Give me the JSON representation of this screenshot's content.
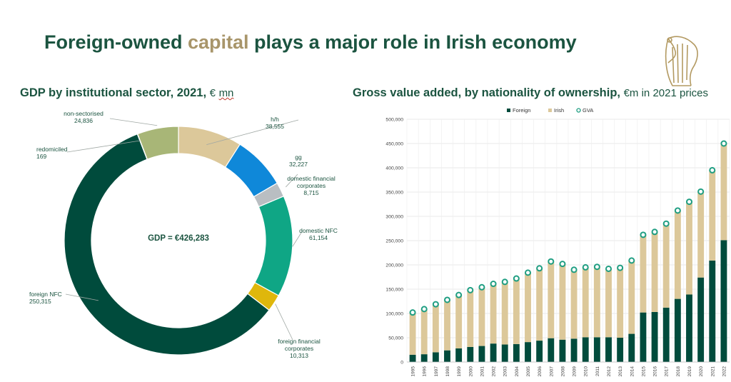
{
  "title": {
    "part1": "Foreign-owned ",
    "accent": "capital",
    "part2": " plays a major role in Irish economy"
  },
  "colors": {
    "title": "#1b5440",
    "accent": "#a8956a",
    "label": "#1b5440"
  },
  "chart_data": [
    {
      "type": "pie",
      "subtype": "donut",
      "title": "GDP by institutional sector, 2021,",
      "unit": "€",
      "unit_suffix": "mn",
      "center_label": "GDP = €426,283",
      "slices": [
        {
          "label": "h/h",
          "value": 38555,
          "display": "38,555",
          "color": "#dcc89a"
        },
        {
          "label": "gg",
          "value": 32227,
          "display": "32,227",
          "color": "#0f88d9"
        },
        {
          "label": "domestic financial corporates",
          "value": 8715,
          "display": "8,715",
          "color": "#b9bec2"
        },
        {
          "label": "domestic NFC",
          "value": 61154,
          "display": "61,154",
          "color": "#0fa685"
        },
        {
          "label": "foreign financial corporates",
          "value": 10313,
          "display": "10,313",
          "color": "#dfb70c"
        },
        {
          "label": "foreign NFC",
          "value": 250315,
          "display": "250,315",
          "color": "#004b3c"
        },
        {
          "label": "redomiciled",
          "value": 169,
          "display": "169",
          "color": "#5a8a55"
        },
        {
          "label": "non-sectorised",
          "value": 24836,
          "display": "24,836",
          "color": "#a8b677"
        }
      ]
    },
    {
      "type": "bar",
      "subtype": "stacked",
      "title": "Gross value added, by nationality of ownership,",
      "unit": "€m in 2021 prices",
      "categories": [
        "1995",
        "1996",
        "1997",
        "1998",
        "1999",
        "2000",
        "2001",
        "2002",
        "2003",
        "2004",
        "2005",
        "2006",
        "2007",
        "2008",
        "2009",
        "2010",
        "2011",
        "2012",
        "2013",
        "2014",
        "2015",
        "2016",
        "2017",
        "2018",
        "2019",
        "2020",
        "2021",
        "2022"
      ],
      "series": [
        {
          "name": "Foreign",
          "color": "#004b3c",
          "values": [
            15000,
            16000,
            20000,
            24000,
            28000,
            31000,
            33000,
            38000,
            36000,
            37000,
            41000,
            44000,
            49000,
            46000,
            48000,
            51000,
            51000,
            51000,
            50000,
            58000,
            102000,
            103000,
            112000,
            130000,
            139000,
            174000,
            209000,
            251000
          ]
        },
        {
          "name": "Irish",
          "color": "#dcc89a",
          "values": [
            87000,
            93000,
            99000,
            104000,
            110000,
            117000,
            121000,
            123000,
            129000,
            135000,
            143000,
            149000,
            158000,
            156000,
            142000,
            144000,
            145000,
            141000,
            144000,
            151000,
            160000,
            165000,
            173000,
            182000,
            191000,
            177000,
            186000,
            199000
          ]
        }
      ],
      "gva": {
        "name": "GVA",
        "color": "#1f9e82",
        "values": [
          102000,
          109000,
          119000,
          128000,
          138000,
          148000,
          154000,
          161000,
          165000,
          172000,
          184000,
          193000,
          207000,
          202000,
          190000,
          195000,
          196000,
          192000,
          194000,
          209000,
          262000,
          268000,
          285000,
          312000,
          330000,
          351000,
          395000,
          450000
        ]
      },
      "yticks": [
        0,
        50000,
        100000,
        150000,
        200000,
        250000,
        300000,
        350000,
        400000,
        450000,
        500000
      ],
      "ytick_labels": [
        "0",
        "50,000",
        "100,000",
        "150,000",
        "200,000",
        "250,000",
        "300,000",
        "350,000",
        "400,000",
        "450,000",
        "500,000"
      ],
      "ylim": [
        0,
        500000
      ],
      "legend_position": "top",
      "grid": true
    }
  ]
}
